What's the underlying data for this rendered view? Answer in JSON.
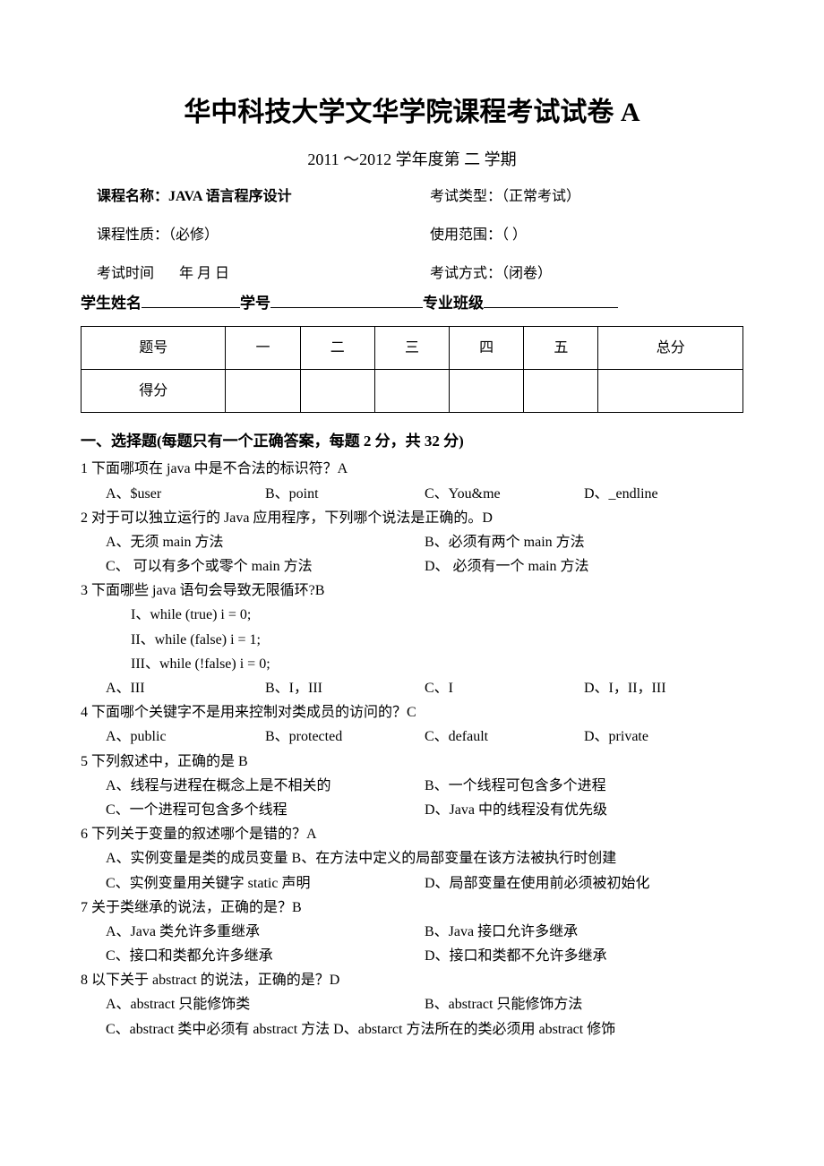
{
  "title": "华中科技大学文华学院课程考试试卷 A",
  "semester": "2011   ～2012   学年度第 二 学期",
  "meta": {
    "course_name_label": "课程名称：",
    "course_name_value": "JAVA 语言程序设计",
    "exam_type_label": "考试类型：",
    "exam_type_value": "（正常考试）",
    "course_nature_label": "课程性质：",
    "course_nature_value": "（必修）",
    "scope_label": "使用范围：",
    "scope_value": "（      ）",
    "exam_time_label": "考试时间",
    "exam_time_value": "年     月     日",
    "exam_mode_label": "考试方式：",
    "exam_mode_value": "（闭卷）",
    "student_name_label": "学生姓名",
    "student_id_label": "学号",
    "class_label": "专业班级"
  },
  "score_table": {
    "headers": [
      "题号",
      "一",
      "二",
      "三",
      "四",
      "五",
      "总分"
    ],
    "row_label": "得分"
  },
  "section1": {
    "title": "一、选择题(每题只有一个正确答案，每题 2 分，共 32 分)",
    "q1": {
      "stem": "1 下面哪项在 java 中是不合法的标识符？A",
      "A": "A、$user",
      "B": "B、point",
      "C": "C、You&me",
      "D": "D、_endline"
    },
    "q2": {
      "stem": "2 对于可以独立运行的 Java 应用程序，下列哪个说法是正确的。D",
      "A": "A、无须 main 方法",
      "B": "B、必须有两个 main 方法",
      "C": "C、  可以有多个或零个 main 方法",
      "D": "D、  必须有一个 main 方法"
    },
    "q3": {
      "stem": "3 下面哪些 java 语句会导致无限循环?B",
      "r1": "I、while (true) i = 0;",
      "r2": "II、while (false) i = 1;",
      "r3": "III、while (!false) i = 0;",
      "A": "A、III",
      "B": "B、I，III",
      "C": "C、I",
      "D": "D、I，II，III"
    },
    "q4": {
      "stem": "4 下面哪个关键字不是用来控制对类成员的访问的？C",
      "A": "A、public",
      "B": "B、protected",
      "C": "C、default",
      "D": "D、private"
    },
    "q5": {
      "stem": "5 下列叙述中，正确的是 B",
      "A": "A、线程与进程在概念上是不相关的",
      "B": "B、一个线程可包含多个进程",
      "C": "C、一个进程可包含多个线程",
      "D": "D、Java 中的线程没有优先级"
    },
    "q6": {
      "stem": "6 下列关于变量的叙述哪个是错的？A",
      "line1": "A、实例变量是类的成员变量    B、在方法中定义的局部变量在该方法被执行时创建",
      "C": "C、实例变量用关键字 static 声明",
      "D": "D、局部变量在使用前必须被初始化"
    },
    "q7": {
      "stem": "7 关于类继承的说法，正确的是？B",
      "A": "A、Java 类允许多重继承",
      "B": "B、Java 接口允许多继承",
      "C": "C、接口和类都允许多继承",
      "D": "D、接口和类都不允许多继承"
    },
    "q8": {
      "stem": "8 以下关于 abstract 的说法，正确的是？D",
      "A": "A、abstract 只能修饰类",
      "B": "B、abstract 只能修饰方法",
      "line2": "C、abstract 类中必须有 abstract 方法 D、abstarct 方法所在的类必须用 abstract 修饰"
    }
  }
}
